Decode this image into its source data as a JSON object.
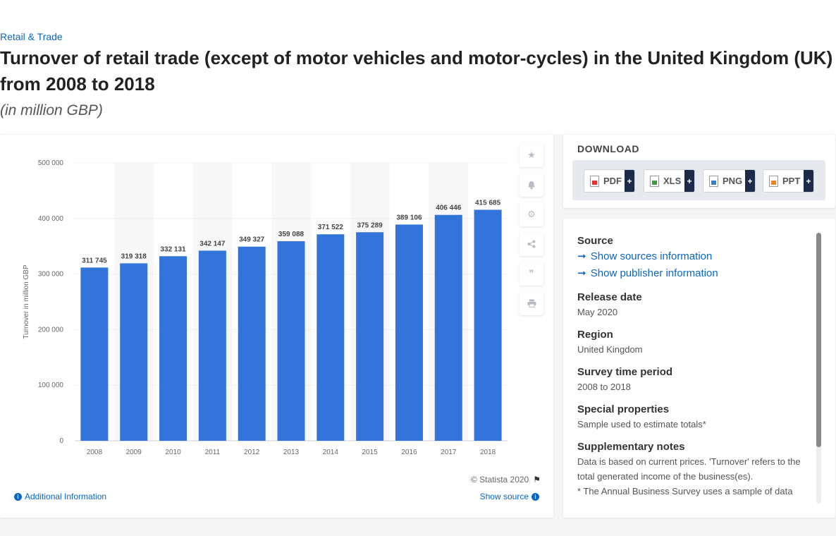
{
  "header": {
    "breadcrumb": "Retail & Trade",
    "title": "Turnover of retail trade (except of motor vehicles and motor-cycles) in the United Kingdom (UK) from 2008 to 2018",
    "subtitle": "(in million GBP)"
  },
  "chart_data": {
    "type": "bar",
    "categories": [
      "2008",
      "2009",
      "2010",
      "2011",
      "2012",
      "2013",
      "2014",
      "2015",
      "2016",
      "2017",
      "2018"
    ],
    "values": [
      311745,
      319318,
      332131,
      342147,
      349327,
      359088,
      371522,
      375289,
      389106,
      406446,
      415685
    ],
    "data_labels": [
      "311 745",
      "319 318",
      "332 131",
      "342 147",
      "349 327",
      "359 088",
      "371 522",
      "375 289",
      "389 106",
      "406 446",
      "415 685"
    ],
    "ylabel": "Turnover in million GBP",
    "ylim": [
      0,
      500000
    ],
    "yticks": [
      0,
      100000,
      200000,
      300000,
      400000,
      500000
    ],
    "ytick_labels": [
      "0",
      "100 000",
      "200 000",
      "300 000",
      "400 000",
      "500 000"
    ],
    "grid": true,
    "bar_color": "#3274d9"
  },
  "chart_footer": {
    "credit": "© Statista 2020",
    "additional_info": "Additional Information",
    "show_source": "Show source"
  },
  "tools": [
    "star-icon",
    "bell-icon",
    "gear-icon",
    "share-icon",
    "quote-icon",
    "print-icon"
  ],
  "download": {
    "title": "DOWNLOAD",
    "buttons": [
      {
        "label": "PDF",
        "plus": "+"
      },
      {
        "label": "XLS",
        "plus": "+"
      },
      {
        "label": "PNG",
        "plus": "+"
      },
      {
        "label": "PPT",
        "plus": "+"
      }
    ]
  },
  "source": {
    "source_label": "Source",
    "show_sources": "Show sources information",
    "show_publisher": "Show publisher information",
    "release_label": "Release date",
    "release_value": "May 2020",
    "region_label": "Region",
    "region_value": "United Kingdom",
    "survey_label": "Survey time period",
    "survey_value": "2008 to 2018",
    "special_label": "Special properties",
    "special_value": "Sample used to estimate totals*",
    "notes_label": "Supplementary notes",
    "notes_value": "Data is based on current prices. 'Turnover' refers to the total generated income of the business(es).",
    "notes_value2": "* The Annual Business Survey uses a sample of data"
  }
}
